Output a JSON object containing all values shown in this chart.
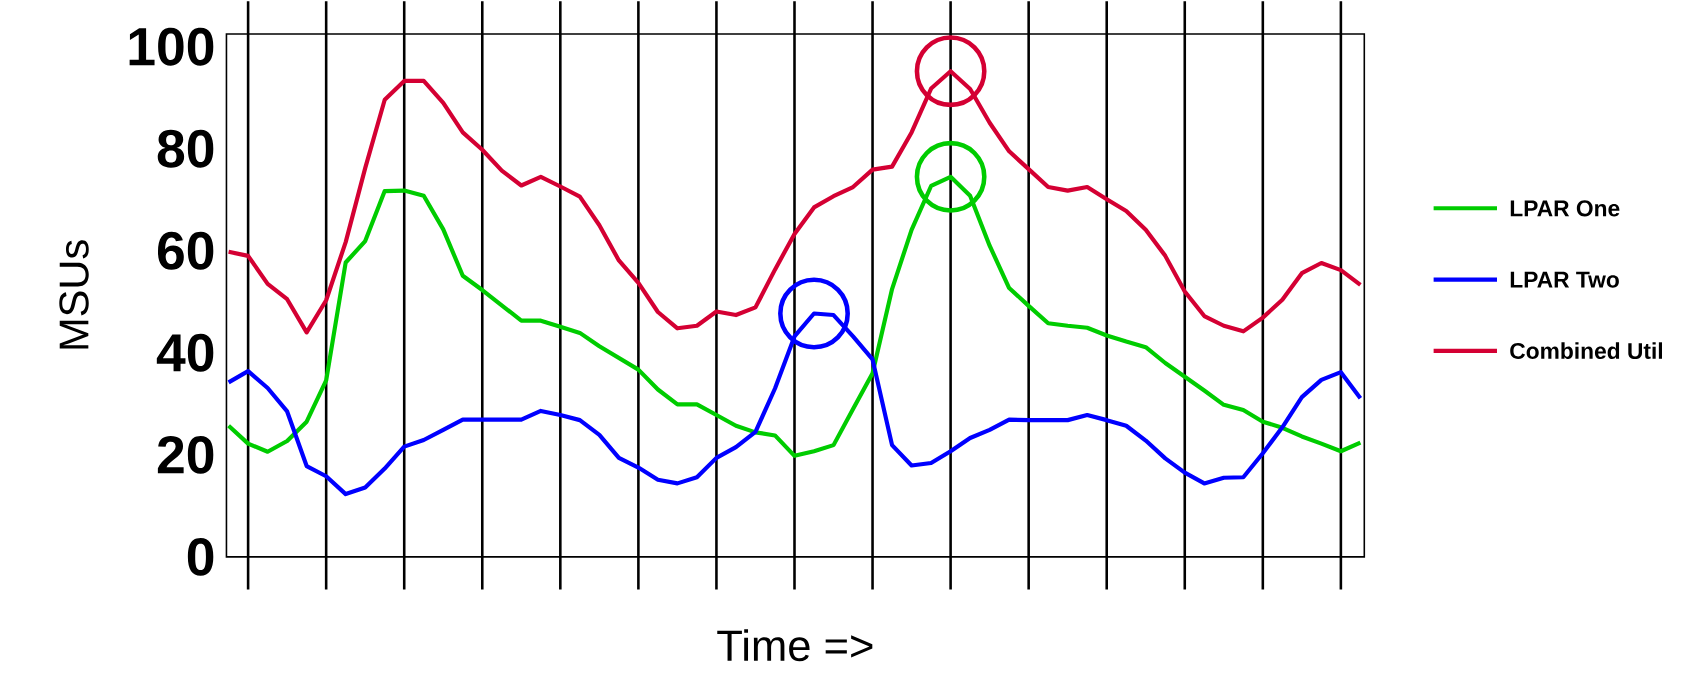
{
  "chart_data": {
    "type": "line",
    "xlabel": "Time =>",
    "ylabel": "MSUs",
    "ylim": [
      0,
      102.5
    ],
    "yticks": [
      0,
      20,
      40,
      60,
      80,
      100
    ],
    "categories": [
      null,
      null,
      null,
      null,
      null,
      null,
      null,
      null,
      null,
      null,
      null,
      null,
      null,
      null,
      null,
      null,
      null,
      null,
      null,
      null,
      null,
      null,
      null,
      null,
      null,
      null,
      null,
      null,
      null,
      null,
      null,
      null,
      null,
      null,
      null,
      null,
      null,
      null,
      null,
      null,
      null,
      null,
      null,
      null,
      null,
      null,
      null,
      null,
      null,
      null,
      null,
      null,
      null,
      null,
      null,
      null,
      null,
      null,
      null
    ],
    "grid": "x",
    "tick_labels": "y",
    "legend": "right",
    "series": [
      {
        "name": "LPAR One",
        "color": "#00cc00",
        "values": [
          25.7,
          22.2,
          20.6,
          22.7,
          26.5,
          34.6,
          57.7,
          61.9,
          71.7,
          71.8,
          70.8,
          64.2,
          55.1,
          52.3,
          49.3,
          46.3,
          46.3,
          45.1,
          43.9,
          41.3,
          39.0,
          36.7,
          32.8,
          29.9,
          29.9,
          27.8,
          25.7,
          24.4,
          23.8,
          19.8,
          20.7,
          21.9,
          29.0,
          36.0,
          52.5,
          64.1,
          72.7,
          74.5,
          70.8,
          61.0,
          52.7,
          49.2,
          45.8,
          45.3,
          44.9,
          43.4,
          42.2,
          41.1,
          38.0,
          35.3,
          32.6,
          29.8,
          28.8,
          26.5,
          25.3,
          23.6,
          22.2,
          20.7,
          22.4
        ]
      },
      {
        "name": "LPAR Two",
        "color": "#0000ff",
        "values": [
          34.2,
          36.4,
          33.1,
          28.5,
          17.8,
          15.8,
          12.3,
          13.6,
          17.3,
          21.6,
          22.9,
          24.9,
          26.9,
          26.9,
          26.9,
          26.9,
          28.6,
          27.8,
          26.8,
          23.9,
          19.4,
          17.5,
          15.1,
          14.4,
          15.6,
          19.4,
          21.5,
          24.5,
          33.0,
          43.2,
          47.7,
          47.4,
          43.2,
          38.7,
          21.9,
          17.9,
          18.4,
          20.7,
          23.3,
          24.9,
          26.9,
          26.8,
          26.8,
          26.8,
          27.8,
          26.8,
          25.7,
          22.8,
          19.3,
          16.5,
          14.4,
          15.5,
          15.6,
          20.3,
          25.4,
          31.3,
          34.7,
          36.2,
          31.1
        ]
      },
      {
        "name": "Combined Util",
        "color": "#d40033",
        "values": [
          59.8,
          59.0,
          53.5,
          50.5,
          44.0,
          50.3,
          61.7,
          76.2,
          89.6,
          93.3,
          93.3,
          89.0,
          83.2,
          79.8,
          75.7,
          72.8,
          74.5,
          72.6,
          70.6,
          65.0,
          58.1,
          53.7,
          48.0,
          44.8,
          45.3,
          48.1,
          47.4,
          48.9,
          56.3,
          63.3,
          68.5,
          70.7,
          72.5,
          75.9,
          76.5,
          83.2,
          91.8,
          95.2,
          91.7,
          85.1,
          79.5,
          76.0,
          72.5,
          71.8,
          72.5,
          70.1,
          67.8,
          64.1,
          59.0,
          52.0,
          47.2,
          45.3,
          44.2,
          46.9,
          50.4,
          55.6,
          57.6,
          56.2,
          53.3
        ]
      }
    ]
  }
}
